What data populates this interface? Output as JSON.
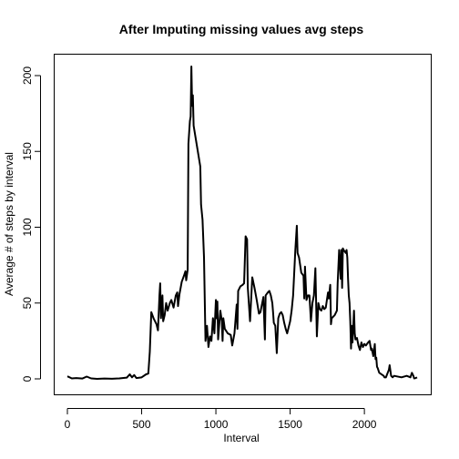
{
  "chart_data": {
    "type": "line",
    "title": "After Imputing missing values avg steps",
    "xlabel": "Interval",
    "ylabel": "Average # of steps by interval",
    "xlim": [
      0,
      2355
    ],
    "ylim": [
      0,
      206
    ],
    "x_ticks": [
      0,
      500,
      1000,
      1500,
      2000
    ],
    "y_ticks": [
      0,
      50,
      100,
      150,
      200
    ],
    "x_tick_labels": [
      "0",
      "500",
      "1000",
      "1500",
      "2000"
    ],
    "y_tick_labels": [
      "0",
      "50",
      "100",
      "150",
      "200"
    ],
    "grid": false,
    "series": [
      {
        "color": "#000000",
        "points": [
          [
            0,
            1.7
          ],
          [
            30,
            0.3
          ],
          [
            60,
            0.5
          ],
          [
            100,
            0.2
          ],
          [
            130,
            1.5
          ],
          [
            160,
            0.3
          ],
          [
            200,
            0
          ],
          [
            250,
            0.2
          ],
          [
            300,
            0.1
          ],
          [
            350,
            0.3
          ],
          [
            400,
            0.8
          ],
          [
            420,
            3
          ],
          [
            435,
            1
          ],
          [
            450,
            2.5
          ],
          [
            465,
            0.5
          ],
          [
            500,
            1
          ],
          [
            530,
            3
          ],
          [
            545,
            3.5
          ],
          [
            555,
            18
          ],
          [
            565,
            44
          ],
          [
            580,
            40
          ],
          [
            600,
            36
          ],
          [
            610,
            32
          ],
          [
            620,
            55
          ],
          [
            625,
            63
          ],
          [
            630,
            40
          ],
          [
            640,
            55
          ],
          [
            645,
            38
          ],
          [
            655,
            42
          ],
          [
            665,
            50
          ],
          [
            675,
            45
          ],
          [
            690,
            50
          ],
          [
            700,
            52
          ],
          [
            715,
            47
          ],
          [
            730,
            55
          ],
          [
            740,
            57
          ],
          [
            745,
            48
          ],
          [
            755,
            56
          ],
          [
            770,
            64
          ],
          [
            785,
            68
          ],
          [
            795,
            71
          ],
          [
            800,
            65
          ],
          [
            810,
            72
          ],
          [
            815,
            155
          ],
          [
            825,
            170
          ],
          [
            830,
            173
          ],
          [
            835,
            206
          ],
          [
            840,
            180
          ],
          [
            845,
            187
          ],
          [
            850,
            167
          ],
          [
            870,
            155
          ],
          [
            895,
            140
          ],
          [
            900,
            115
          ],
          [
            910,
            105
          ],
          [
            920,
            80
          ],
          [
            930,
            25
          ],
          [
            940,
            35
          ],
          [
            950,
            21
          ],
          [
            960,
            28
          ],
          [
            970,
            25
          ],
          [
            980,
            40
          ],
          [
            990,
            30
          ],
          [
            1000,
            52
          ],
          [
            1005,
            40
          ],
          [
            1010,
            51
          ],
          [
            1015,
            26
          ],
          [
            1030,
            45
          ],
          [
            1040,
            38
          ],
          [
            1045,
            25
          ],
          [
            1050,
            40
          ],
          [
            1060,
            33
          ],
          [
            1080,
            30
          ],
          [
            1100,
            29
          ],
          [
            1110,
            22
          ],
          [
            1125,
            30
          ],
          [
            1140,
            49
          ],
          [
            1145,
            33
          ],
          [
            1150,
            58
          ],
          [
            1165,
            61
          ],
          [
            1180,
            62
          ],
          [
            1190,
            63
          ],
          [
            1200,
            94
          ],
          [
            1210,
            92
          ],
          [
            1215,
            60
          ],
          [
            1230,
            38
          ],
          [
            1245,
            67
          ],
          [
            1260,
            60
          ],
          [
            1275,
            52
          ],
          [
            1290,
            43
          ],
          [
            1300,
            44
          ],
          [
            1320,
            54
          ],
          [
            1330,
            26
          ],
          [
            1335,
            55
          ],
          [
            1350,
            57
          ],
          [
            1360,
            58
          ],
          [
            1370,
            55
          ],
          [
            1380,
            50
          ],
          [
            1385,
            44
          ],
          [
            1390,
            37
          ],
          [
            1400,
            35
          ],
          [
            1410,
            17
          ],
          [
            1420,
            40
          ],
          [
            1430,
            43
          ],
          [
            1440,
            44
          ],
          [
            1450,
            42
          ],
          [
            1460,
            37
          ],
          [
            1470,
            33
          ],
          [
            1480,
            30
          ],
          [
            1495,
            36
          ],
          [
            1500,
            38
          ],
          [
            1510,
            45
          ],
          [
            1520,
            55
          ],
          [
            1535,
            85
          ],
          [
            1545,
            101
          ],
          [
            1550,
            83
          ],
          [
            1560,
            80
          ],
          [
            1575,
            70
          ],
          [
            1590,
            68
          ],
          [
            1595,
            53
          ],
          [
            1600,
            74
          ],
          [
            1610,
            52
          ],
          [
            1620,
            55
          ],
          [
            1630,
            55
          ],
          [
            1640,
            38
          ],
          [
            1650,
            50
          ],
          [
            1660,
            55
          ],
          [
            1670,
            73
          ],
          [
            1680,
            28
          ],
          [
            1690,
            50
          ],
          [
            1700,
            46
          ],
          [
            1710,
            45
          ],
          [
            1720,
            48
          ],
          [
            1730,
            46
          ],
          [
            1740,
            47
          ],
          [
            1755,
            57
          ],
          [
            1760,
            53
          ],
          [
            1770,
            62
          ],
          [
            1775,
            36
          ],
          [
            1780,
            40
          ],
          [
            1800,
            42
          ],
          [
            1815,
            45
          ],
          [
            1820,
            63
          ],
          [
            1830,
            85
          ],
          [
            1840,
            66
          ],
          [
            1845,
            85
          ],
          [
            1850,
            60
          ],
          [
            1855,
            86
          ],
          [
            1860,
            85
          ],
          [
            1875,
            83
          ],
          [
            1880,
            85
          ],
          [
            1885,
            80
          ],
          [
            1890,
            66
          ],
          [
            1895,
            55
          ],
          [
            1900,
            50
          ],
          [
            1905,
            38
          ],
          [
            1910,
            20
          ],
          [
            1915,
            35
          ],
          [
            1920,
            24
          ],
          [
            1930,
            45
          ],
          [
            1935,
            30
          ],
          [
            1940,
            26
          ],
          [
            1950,
            27
          ],
          [
            1960,
            22
          ],
          [
            1970,
            19
          ],
          [
            1980,
            24
          ],
          [
            1990,
            21
          ],
          [
            2000,
            23
          ],
          [
            2010,
            22
          ],
          [
            2025,
            24
          ],
          [
            2035,
            25
          ],
          [
            2045,
            19
          ],
          [
            2050,
            20
          ],
          [
            2060,
            15
          ],
          [
            2070,
            23
          ],
          [
            2075,
            13
          ],
          [
            2080,
            14
          ],
          [
            2085,
            8
          ],
          [
            2090,
            7
          ],
          [
            2100,
            4
          ],
          [
            2130,
            2
          ],
          [
            2135,
            1
          ],
          [
            2145,
            1
          ],
          [
            2165,
            6
          ],
          [
            2170,
            9
          ],
          [
            2180,
            2
          ],
          [
            2190,
            1
          ],
          [
            2200,
            2
          ],
          [
            2250,
            1
          ],
          [
            2285,
            2
          ],
          [
            2310,
            1
          ],
          [
            2320,
            4
          ],
          [
            2330,
            2
          ],
          [
            2335,
            0.3
          ],
          [
            2345,
            0.5
          ],
          [
            2355,
            1
          ]
        ]
      }
    ]
  }
}
